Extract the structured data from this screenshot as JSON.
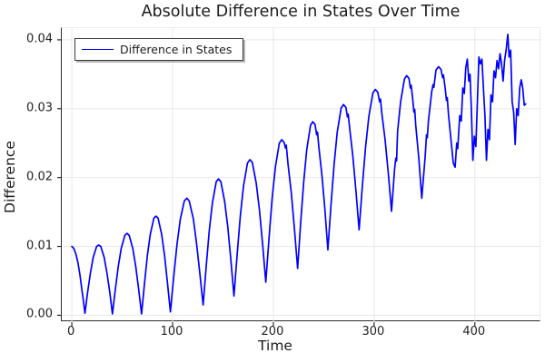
{
  "chart_data": {
    "type": "line",
    "title": "Absolute Difference in States Over Time",
    "xlabel": "Time",
    "ylabel": "Difference",
    "xlim": [
      -10,
      466
    ],
    "ylim": [
      -0.001,
      0.0417
    ],
    "grid": true,
    "legend_position": "top-left",
    "xticks": {
      "values": [
        0,
        100,
        200,
        300,
        400
      ],
      "labels": [
        "0",
        "100",
        "200",
        "300",
        "400"
      ]
    },
    "yticks": {
      "values": [
        0,
        0.01,
        0.02,
        0.03,
        0.04
      ],
      "labels": [
        "0.00",
        "0.01",
        "0.02",
        "0.03",
        "0.04"
      ]
    },
    "series": [
      {
        "name": "Difference in States",
        "color": "#0000ff",
        "line_width": 1.7,
        "points": [
          [
            0,
            0.01
          ],
          [
            2,
            0.0097
          ],
          [
            4,
            0.0089
          ],
          [
            6,
            0.0077
          ],
          [
            8,
            0.0059
          ],
          [
            10,
            0.0037
          ],
          [
            11.5,
            0.0021
          ],
          [
            13,
            0.0003
          ],
          [
            15.7,
            0.0034
          ],
          [
            18.5,
            0.0062
          ],
          [
            21.2,
            0.0084
          ],
          [
            24.6,
            0.01
          ],
          [
            26.7,
            0.0102
          ],
          [
            28.7,
            0.01
          ],
          [
            32.1,
            0.0084
          ],
          [
            34.8,
            0.0062
          ],
          [
            37.6,
            0.0034
          ],
          [
            40.3,
            0.0002
          ],
          [
            43.2,
            0.0038
          ],
          [
            46.1,
            0.0071
          ],
          [
            49,
            0.0097
          ],
          [
            52.6,
            0.0116
          ],
          [
            54.8,
            0.0119
          ],
          [
            56.9,
            0.0116
          ],
          [
            60.5,
            0.0097
          ],
          [
            63.4,
            0.0071
          ],
          [
            66.3,
            0.0038
          ],
          [
            69.2,
            0.0002
          ],
          [
            72.1,
            0.0046
          ],
          [
            74.9,
            0.0086
          ],
          [
            77.8,
            0.0117
          ],
          [
            81.4,
            0.0141
          ],
          [
            83.5,
            0.0144
          ],
          [
            85.6,
            0.0141
          ],
          [
            89.2,
            0.0117
          ],
          [
            92.1,
            0.0086
          ],
          [
            94.9,
            0.0047
          ],
          [
            97.8,
            0.0005
          ],
          [
            101.1,
            0.0056
          ],
          [
            104.3,
            0.0102
          ],
          [
            107.6,
            0.0139
          ],
          [
            111.6,
            0.0166
          ],
          [
            114.1,
            0.017
          ],
          [
            116.5,
            0.0166
          ],
          [
            120.6,
            0.014
          ],
          [
            123.8,
            0.0104
          ],
          [
            127.1,
            0.006
          ],
          [
            130.3,
            0.0015
          ],
          [
            133.4,
            0.0072
          ],
          [
            136.4,
            0.0123
          ],
          [
            139.5,
            0.0163
          ],
          [
            143.3,
            0.0194
          ],
          [
            145.6,
            0.0198
          ],
          [
            147.9,
            0.0194
          ],
          [
            151.7,
            0.0165
          ],
          [
            154.8,
            0.0128
          ],
          [
            157.8,
            0.0081
          ],
          [
            160.9,
            0.0028
          ],
          [
            164.1,
            0.0089
          ],
          [
            167.2,
            0.0144
          ],
          [
            170.4,
            0.0188
          ],
          [
            174.3,
            0.0221
          ],
          [
            176.7,
            0.0226
          ],
          [
            179.1,
            0.0222
          ],
          [
            183,
            0.0192
          ],
          [
            186.2,
            0.0153
          ],
          [
            189.3,
            0.0104
          ],
          [
            192.5,
            0.0048
          ],
          [
            195.7,
            0.0112
          ],
          [
            198.8,
            0.017
          ],
          [
            202,
            0.0215
          ],
          [
            205.9,
            0.025
          ],
          [
            208.3,
            0.0255
          ],
          [
            210.7,
            0.0251
          ],
          [
            212,
            0.0243
          ],
          [
            212.8,
            0.0247
          ],
          [
            214.6,
            0.0219
          ],
          [
            217.8,
            0.0178
          ],
          [
            220.9,
            0.0126
          ],
          [
            224.1,
            0.0068
          ],
          [
            227.1,
            0.0134
          ],
          [
            230.1,
            0.0193
          ],
          [
            233.1,
            0.024
          ],
          [
            236.9,
            0.0276
          ],
          [
            239.1,
            0.0281
          ],
          [
            241.4,
            0.0277
          ],
          [
            243,
            0.0262
          ],
          [
            243.8,
            0.0266
          ],
          [
            245.1,
            0.0245
          ],
          [
            248.1,
            0.0205
          ],
          [
            251.1,
            0.0155
          ],
          [
            254.1,
            0.0095
          ],
          [
            257.2,
            0.016
          ],
          [
            260.3,
            0.0219
          ],
          [
            263.4,
            0.0266
          ],
          [
            267.3,
            0.0301
          ],
          [
            269.6,
            0.0306
          ],
          [
            272,
            0.0302
          ],
          [
            273.5,
            0.0288
          ],
          [
            274.3,
            0.0292
          ],
          [
            275.8,
            0.0271
          ],
          [
            278.9,
            0.0231
          ],
          [
            282,
            0.018
          ],
          [
            285.1,
            0.0124
          ],
          [
            288.3,
            0.0187
          ],
          [
            291.5,
            0.0244
          ],
          [
            294.8,
            0.0289
          ],
          [
            298.8,
            0.0323
          ],
          [
            301.2,
            0.0328
          ],
          [
            303.6,
            0.0324
          ],
          [
            305.5,
            0.031
          ],
          [
            306.3,
            0.0314
          ],
          [
            307.6,
            0.0294
          ],
          [
            310.9,
            0.0255
          ],
          [
            314.1,
            0.0206
          ],
          [
            317.3,
            0.0151
          ],
          [
            320.3,
            0.0212
          ],
          [
            321.5,
            0.0228
          ],
          [
            322.3,
            0.0224
          ],
          [
            323.3,
            0.0267
          ],
          [
            326.3,
            0.031
          ],
          [
            330.1,
            0.0343
          ],
          [
            332.3,
            0.0348
          ],
          [
            334.6,
            0.0344
          ],
          [
            336,
            0.033
          ],
          [
            336.8,
            0.0334
          ],
          [
            338.3,
            0.0314
          ],
          [
            339.5,
            0.0295
          ],
          [
            340.3,
            0.0299
          ],
          [
            341.3,
            0.0276
          ],
          [
            344.3,
            0.0229
          ],
          [
            347.3,
            0.017
          ],
          [
            350.6,
            0.0229
          ],
          [
            352,
            0.0262
          ],
          [
            352.8,
            0.0258
          ],
          [
            353.9,
            0.0282
          ],
          [
            357.2,
            0.0325
          ],
          [
            358.5,
            0.0335
          ],
          [
            359.3,
            0.0331
          ],
          [
            361.4,
            0.0356
          ],
          [
            363.9,
            0.0361
          ],
          [
            366.4,
            0.0357
          ],
          [
            368,
            0.0345
          ],
          [
            368.8,
            0.0349
          ],
          [
            370.5,
            0.033
          ],
          [
            371.8,
            0.0312
          ],
          [
            372.6,
            0.0316
          ],
          [
            373.8,
            0.0292
          ],
          [
            377.1,
            0.0243
          ],
          [
            378.5,
            0.0222
          ],
          [
            379.4,
            0.0218
          ],
          [
            380.4,
            0.0215
          ],
          [
            382,
            0.025
          ],
          [
            383,
            0.0242
          ],
          [
            385,
            0.029
          ],
          [
            386.5,
            0.0282
          ],
          [
            388,
            0.033
          ],
          [
            389.5,
            0.0322
          ],
          [
            391,
            0.036
          ],
          [
            392.5,
            0.0372
          ],
          [
            394,
            0.034
          ],
          [
            395.2,
            0.035
          ],
          [
            396.5,
            0.03
          ],
          [
            398,
            0.0225
          ],
          [
            399.5,
            0.026
          ],
          [
            401,
            0.0245
          ],
          [
            402.5,
            0.031
          ],
          [
            404,
            0.0375
          ],
          [
            405.5,
            0.0365
          ],
          [
            407,
            0.0372
          ],
          [
            408.5,
            0.033
          ],
          [
            410,
            0.029
          ],
          [
            411.5,
            0.0225
          ],
          [
            413,
            0.027
          ],
          [
            414.5,
            0.0255
          ],
          [
            416,
            0.032
          ],
          [
            417.5,
            0.031
          ],
          [
            419,
            0.0355
          ],
          [
            420.5,
            0.0345
          ],
          [
            422,
            0.037
          ],
          [
            423.5,
            0.0358
          ],
          [
            425,
            0.038
          ],
          [
            426.5,
            0.0365
          ],
          [
            428,
            0.034
          ],
          [
            429.5,
            0.037
          ],
          [
            431,
            0.0385
          ],
          [
            432.7,
            0.0408
          ],
          [
            434,
            0.0375
          ],
          [
            435.5,
            0.0385
          ],
          [
            437,
            0.031
          ],
          [
            438.5,
            0.0295
          ],
          [
            440,
            0.0248
          ],
          [
            441.5,
            0.03
          ],
          [
            443,
            0.029
          ],
          [
            444.5,
            0.033
          ],
          [
            446,
            0.0342
          ],
          [
            447.5,
            0.033
          ],
          [
            449,
            0.0305
          ],
          [
            450.5,
            0.0307
          ]
        ]
      }
    ]
  }
}
